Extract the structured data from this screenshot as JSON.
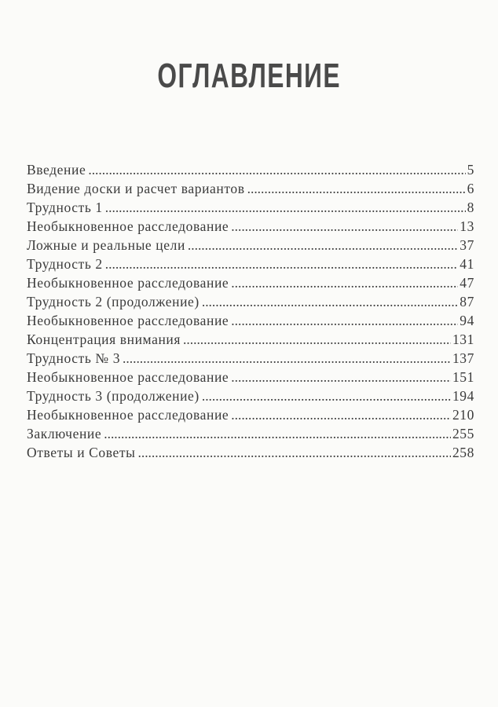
{
  "title": "ОГЛАВЛЕНИЕ",
  "entries": [
    {
      "label": "Введение",
      "page": "5"
    },
    {
      "label": "Видение доски и расчет вариантов",
      "page": "6"
    },
    {
      "label": "Трудность 1",
      "page": "8"
    },
    {
      "label": "Необыкновенное расследование",
      "page": "13"
    },
    {
      "label": "Ложные и реальные цели",
      "page": "37"
    },
    {
      "label": "Трудность 2",
      "page": "41"
    },
    {
      "label": "Необыкновенное расследование",
      "page": "47"
    },
    {
      "label": "Трудность 2 (продолжение)",
      "page": "87"
    },
    {
      "label": "Необыкновенное расследование",
      "page": "94"
    },
    {
      "label": "Концентрация внимания",
      "page": "131"
    },
    {
      "label": "Трудность № 3",
      "page": "137"
    },
    {
      "label": "Необыкновенное расследование",
      "page": "151"
    },
    {
      "label": "Трудность 3 (продолжение)",
      "page": "194"
    },
    {
      "label": "Необыкновенное расследование",
      "page": "210"
    },
    {
      "label": "Заключение",
      "page": "255"
    },
    {
      "label": "Ответы и Советы",
      "page": "258"
    }
  ]
}
